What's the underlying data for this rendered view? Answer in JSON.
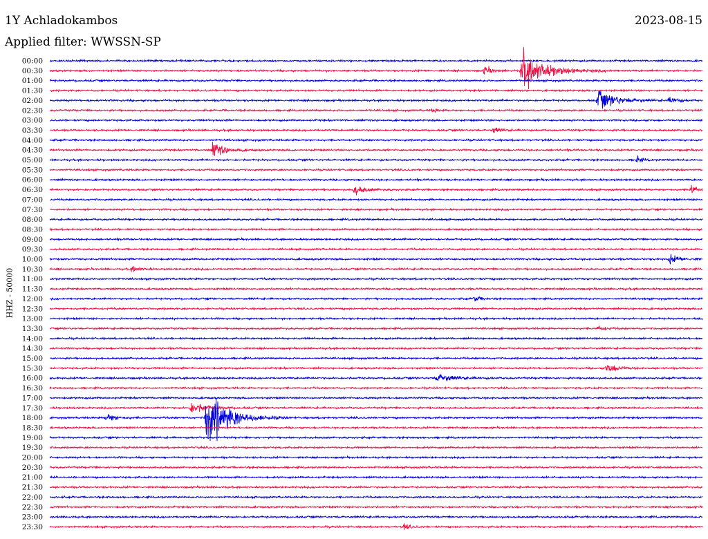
{
  "header": {
    "station": "1Y Achladokambos",
    "date": "2023-08-15",
    "filter": "Applied filter: WWSSN-SP"
  },
  "chart_data": {
    "type": "line",
    "title": "1Y Achladokambos",
    "ylabel": "HHZ - 50000",
    "traces": [
      "00:00",
      "00:30",
      "01:00",
      "01:30",
      "02:00",
      "02:30",
      "03:00",
      "03:30",
      "04:00",
      "04:30",
      "05:00",
      "05:30",
      "06:00",
      "06:30",
      "07:00",
      "07:30",
      "08:00",
      "08:30",
      "09:00",
      "09:30",
      "10:00",
      "10:30",
      "11:00",
      "11:30",
      "12:00",
      "12:30",
      "13:00",
      "13:30",
      "14:00",
      "14:30",
      "15:00",
      "15:30",
      "16:00",
      "16:30",
      "17:00",
      "17:30",
      "18:00",
      "18:30",
      "19:00",
      "19:30",
      "20:00",
      "20:30",
      "21:00",
      "21:30",
      "22:00",
      "22:30",
      "23:00",
      "23:30"
    ],
    "colors": [
      "#0000dd",
      "#ee1144"
    ],
    "x_minutes": [
      0,
      30
    ],
    "events": [
      {
        "trace": 1,
        "minute": 20.0,
        "amp": 8,
        "dur": 0.5
      },
      {
        "trace": 1,
        "minute": 21.7,
        "amp": 32,
        "dur": 1.8
      },
      {
        "trace": 4,
        "minute": 25.2,
        "amp": 18,
        "dur": 1.3
      },
      {
        "trace": 4,
        "minute": 28.5,
        "amp": 7,
        "dur": 0.6
      },
      {
        "trace": 5,
        "minute": 17.6,
        "amp": 4,
        "dur": 0.3
      },
      {
        "trace": 7,
        "minute": 20.4,
        "amp": 5,
        "dur": 0.6
      },
      {
        "trace": 9,
        "minute": 7.5,
        "amp": 14,
        "dur": 0.9
      },
      {
        "trace": 10,
        "minute": 27.0,
        "amp": 8,
        "dur": 0.3
      },
      {
        "trace": 13,
        "minute": 14.0,
        "amp": 8,
        "dur": 0.8
      },
      {
        "trace": 13,
        "minute": 29.5,
        "amp": 9,
        "dur": 0.4
      },
      {
        "trace": 20,
        "minute": 28.5,
        "amp": 7,
        "dur": 0.8
      },
      {
        "trace": 21,
        "minute": 3.8,
        "amp": 5,
        "dur": 0.6
      },
      {
        "trace": 24,
        "minute": 19.5,
        "amp": 6,
        "dur": 0.4
      },
      {
        "trace": 27,
        "minute": 25.2,
        "amp": 4,
        "dur": 0.5
      },
      {
        "trace": 31,
        "minute": 25.6,
        "amp": 8,
        "dur": 0.9
      },
      {
        "trace": 32,
        "minute": 17.8,
        "amp": 8,
        "dur": 1.2
      },
      {
        "trace": 35,
        "minute": 6.5,
        "amp": 10,
        "dur": 1.2
      },
      {
        "trace": 36,
        "minute": 7.2,
        "amp": 52,
        "dur": 1.6
      },
      {
        "trace": 36,
        "minute": 2.6,
        "amp": 8,
        "dur": 0.7
      },
      {
        "trace": 47,
        "minute": 16.3,
        "amp": 5,
        "dur": 0.4
      }
    ]
  }
}
